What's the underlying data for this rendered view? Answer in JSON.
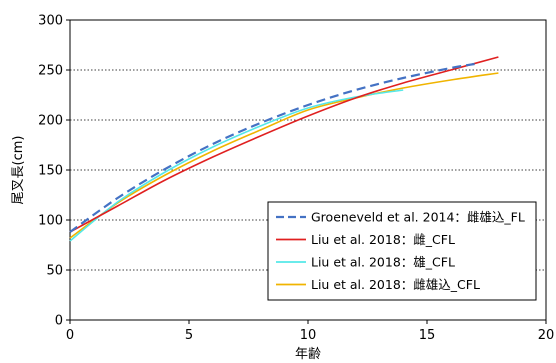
{
  "chart_data": {
    "type": "line",
    "xlabel": "年齢",
    "ylabel": "尾叉長(cm)",
    "xlim": [
      0,
      20
    ],
    "ylim": [
      0,
      300
    ],
    "x_ticks": [
      0,
      5,
      10,
      15,
      20
    ],
    "y_ticks": [
      0,
      50,
      100,
      150,
      200,
      250,
      300
    ],
    "grid": "horizontal-dotted",
    "legend_position": "lower-right",
    "series": [
      {
        "name": "Groeneveld et al. 2014：雌雄込_FL",
        "color": "#4472C4",
        "dash": "dashed",
        "x": [
          0,
          2,
          4,
          6,
          8,
          10,
          12,
          14,
          16,
          17
        ],
        "y": [
          88,
          122,
          151,
          176,
          197,
          215,
          230,
          242,
          252,
          256
        ]
      },
      {
        "name": "Liu et al. 2018：雌_CFL",
        "color": "#E02020",
        "dash": "solid",
        "x": [
          0,
          2,
          4,
          6,
          8,
          10,
          12,
          14,
          16,
          18
        ],
        "y": [
          88,
          114,
          140,
          163,
          184,
          204,
          222,
          237,
          250,
          263
        ]
      },
      {
        "name": "Liu et al. 2018：雄_CFL",
        "color": "#55E8E8",
        "dash": "solid",
        "x": [
          0,
          2,
          4,
          6,
          8,
          10,
          12,
          14
        ],
        "y": [
          79,
          118,
          148,
          173,
          194,
          212,
          223,
          230
        ]
      },
      {
        "name": "Liu et al. 2018：雌雄込_CFL",
        "color": "#F0B400",
        "dash": "solid",
        "x": [
          0,
          2,
          4,
          6,
          8,
          10,
          12,
          14,
          16,
          18
        ],
        "y": [
          82,
          117,
          145,
          169,
          190,
          210,
          222,
          232,
          240,
          247
        ]
      }
    ]
  }
}
